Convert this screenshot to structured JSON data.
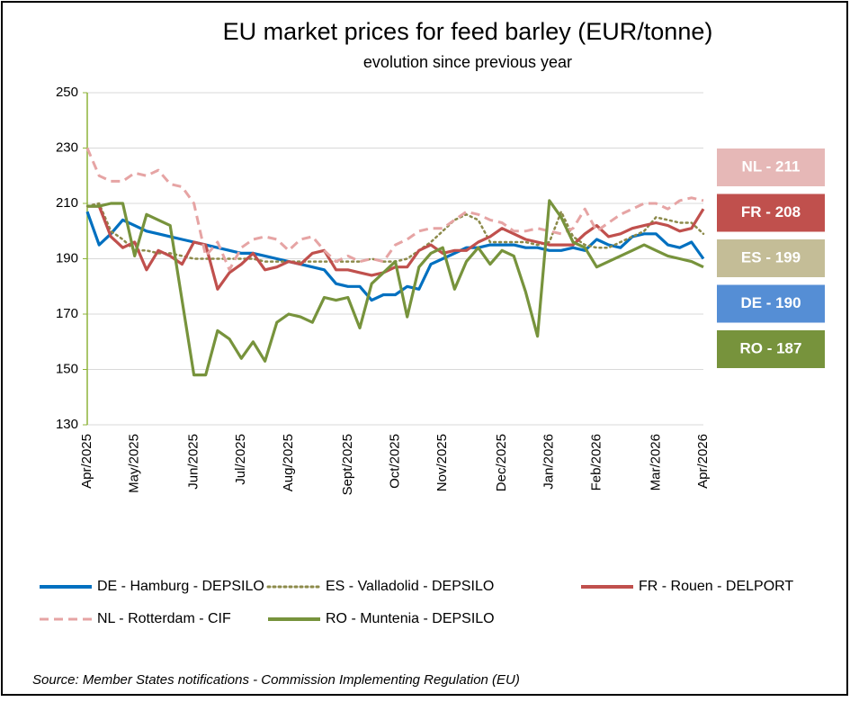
{
  "chart_data": {
    "type": "line",
    "title": "EU market prices for feed barley (EUR/tonne)",
    "subtitle": "evolution since previous year",
    "source": "Source: Member States notifications - Commission Implementing Regulation (EU)",
    "categories": [
      "Apr/2025",
      null,
      null,
      null,
      "May/2025",
      null,
      null,
      null,
      null,
      "Jun/2025",
      null,
      null,
      null,
      "Jul/2025",
      null,
      null,
      null,
      "Aug/2025",
      null,
      null,
      null,
      null,
      "Sept/2025",
      null,
      null,
      null,
      "Oct/2025",
      null,
      null,
      null,
      "Nov/2025",
      null,
      null,
      null,
      null,
      "Dec/2025",
      null,
      null,
      null,
      "Jan/2026",
      null,
      null,
      null,
      "Feb/2026",
      null,
      null,
      null,
      null,
      "Mar/2026",
      null,
      null,
      null,
      "Apr/2026"
    ],
    "ylim": [
      130,
      250
    ],
    "yticks": [
      130,
      150,
      170,
      190,
      210,
      230,
      250
    ],
    "grid": true,
    "series": [
      {
        "name": "DE - Hamburg - DEPSILO",
        "color": "#0070c0",
        "style": "solid",
        "values": [
          207,
          195,
          199,
          204,
          202,
          200,
          199,
          198,
          197,
          196,
          195,
          194,
          193,
          192,
          192,
          191,
          190,
          189,
          188,
          187,
          186,
          181,
          180,
          180,
          175,
          177,
          177,
          180,
          179,
          188,
          190,
          192,
          194,
          194,
          195,
          195,
          195,
          194,
          194,
          193,
          193,
          194,
          193,
          197,
          195,
          194,
          198,
          199,
          199,
          195,
          194,
          196,
          190
        ]
      },
      {
        "name": "ES - Valladolid - DEPSILO",
        "color": "#8c8a4a",
        "style": "dotted",
        "values": [
          209,
          210,
          200,
          197,
          193,
          193,
          192,
          192,
          191,
          190,
          190,
          190,
          190,
          190,
          190,
          189,
          189,
          189,
          189,
          189,
          189,
          189,
          189,
          189,
          190,
          189,
          189,
          190,
          193,
          196,
          200,
          204,
          206,
          204,
          196,
          196,
          196,
          196,
          195,
          196,
          207,
          198,
          195,
          194,
          194,
          196,
          198,
          200,
          205,
          204,
          203,
          203,
          199
        ]
      },
      {
        "name": "FR - Rouen - DELPORT",
        "color": "#c0504d",
        "style": "solid",
        "values": [
          209,
          209,
          198,
          194,
          196,
          186,
          193,
          191,
          188,
          196,
          195,
          179,
          185,
          188,
          192,
          186,
          187,
          189,
          188,
          192,
          193,
          186,
          186,
          185,
          184,
          185,
          187,
          187,
          193,
          195,
          192,
          193,
          193,
          196,
          198,
          201,
          199,
          197,
          196,
          195,
          195,
          195,
          199,
          202,
          198,
          199,
          201,
          202,
          203,
          202,
          200,
          201,
          208
        ]
      },
      {
        "name": "NL - Rotterdam - CIF",
        "color": "#e6a4a4",
        "style": "dashed",
        "values": [
          230,
          220,
          218,
          218,
          221,
          220,
          222,
          217,
          216,
          210,
          191,
          196,
          186,
          194,
          197,
          198,
          197,
          193,
          197,
          198,
          193,
          189,
          191,
          189,
          190,
          189,
          195,
          197,
          200,
          201,
          201,
          204,
          207,
          206,
          204,
          203,
          200,
          200,
          201,
          200,
          199,
          201,
          208,
          200,
          203,
          206,
          208,
          210,
          210,
          208,
          211,
          212,
          211
        ]
      },
      {
        "name": "RO - Muntenia - DEPSILO",
        "color": "#77933c",
        "style": "solid",
        "values": [
          209,
          209,
          210,
          210,
          191,
          206,
          204,
          202,
          175,
          148,
          148,
          164,
          161,
          154,
          160,
          153,
          167,
          170,
          169,
          167,
          176,
          175,
          176,
          165,
          181,
          185,
          189,
          169,
          187,
          192,
          194,
          179,
          189,
          194,
          188,
          193,
          191,
          178,
          162,
          211,
          205,
          196,
          194,
          187,
          189,
          191,
          193,
          195,
          193,
          191,
          190,
          189,
          187
        ]
      }
    ],
    "annotations": [
      {
        "text": "NL - 211",
        "color": "#e6b8b7"
      },
      {
        "text": "FR - 208",
        "color": "#c0504d"
      },
      {
        "text": "ES - 199",
        "color": "#c4bd97"
      },
      {
        "text": "DE - 190",
        "color": "#558ed5"
      },
      {
        "text": "RO - 187",
        "color": "#77933c"
      }
    ]
  }
}
